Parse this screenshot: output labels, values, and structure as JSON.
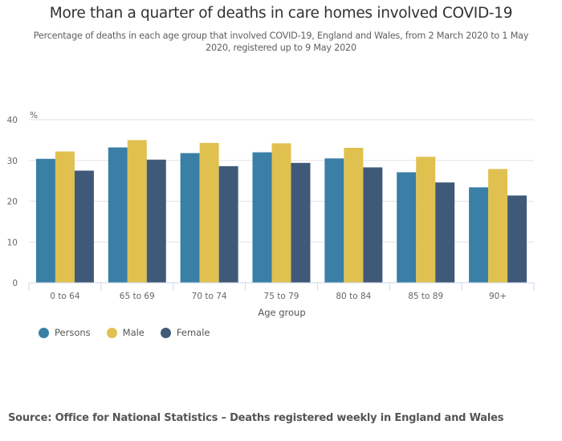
{
  "chart_data": {
    "type": "bar",
    "title": "More than a quarter of deaths in care homes involved COVID-19",
    "subtitle": "Percentage of deaths in each age group that involved COVID-19, England and Wales, from 2 March 2020 to 1 May 2020, registered up to 9 May 2020",
    "xlabel": "Age group",
    "ylabel": "%",
    "ylim": [
      0,
      40
    ],
    "yticks": [
      0,
      10,
      20,
      30,
      40
    ],
    "grid": true,
    "legend_position": "bottom-left",
    "categories": [
      "0 to 64",
      "65 to 69",
      "70 to 74",
      "75 to 79",
      "80 to 84",
      "85 to 89",
      "90+"
    ],
    "series": [
      {
        "name": "Persons",
        "color": "#3a7fa5",
        "values": [
          30.4,
          33.2,
          31.8,
          32.0,
          30.5,
          27.1,
          23.4
        ]
      },
      {
        "name": "Male",
        "color": "#e0c150",
        "values": [
          32.2,
          35.0,
          34.3,
          34.2,
          33.1,
          30.9,
          27.9
        ]
      },
      {
        "name": "Female",
        "color": "#3f5a78",
        "values": [
          27.5,
          30.2,
          28.6,
          29.4,
          28.3,
          24.6,
          21.4
        ]
      }
    ]
  },
  "source": "Source: Office for National Statistics – Deaths registered weekly in England and Wales"
}
